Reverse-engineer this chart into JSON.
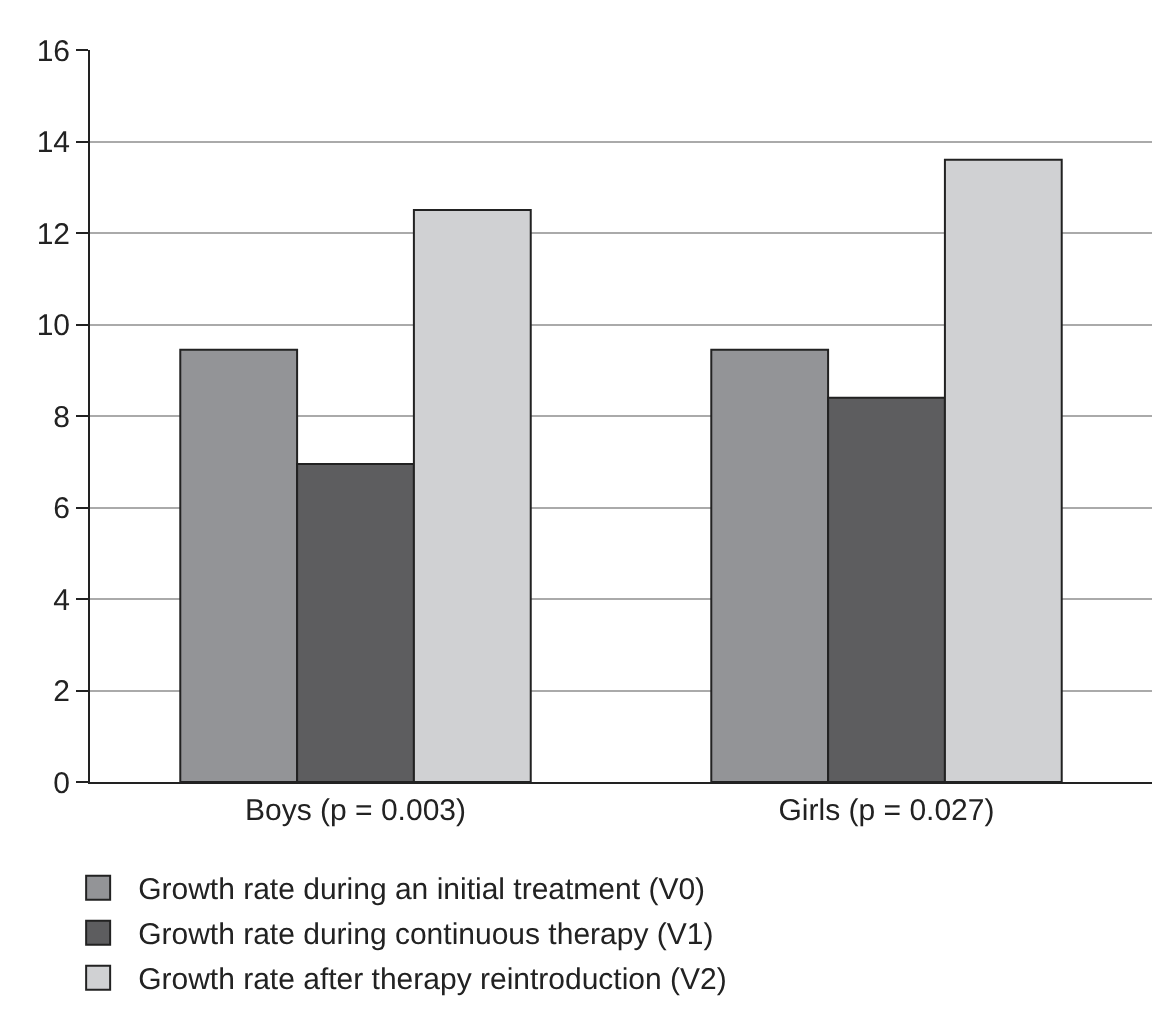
{
  "chart_data": {
    "type": "bar",
    "categories": [
      "Boys (p = 0.003)",
      "Girls (p = 0.027)"
    ],
    "series": [
      {
        "name": "Growth rate during an initial treatment (V0)",
        "color": "#939497",
        "values": [
          9.45,
          9.45
        ]
      },
      {
        "name": "Growth rate during continuous therapy (V1)",
        "color": "#5d5d5f",
        "values": [
          6.95,
          8.4
        ]
      },
      {
        "name": "Growth rate after therapy reintroduction (V2)",
        "color": "#d0d1d3",
        "values": [
          12.5,
          13.6
        ]
      }
    ],
    "ylim": [
      0,
      16
    ],
    "yticks": [
      0,
      2,
      4,
      6,
      8,
      10,
      12,
      14,
      16
    ],
    "grid": "y",
    "legend": "bottom"
  }
}
